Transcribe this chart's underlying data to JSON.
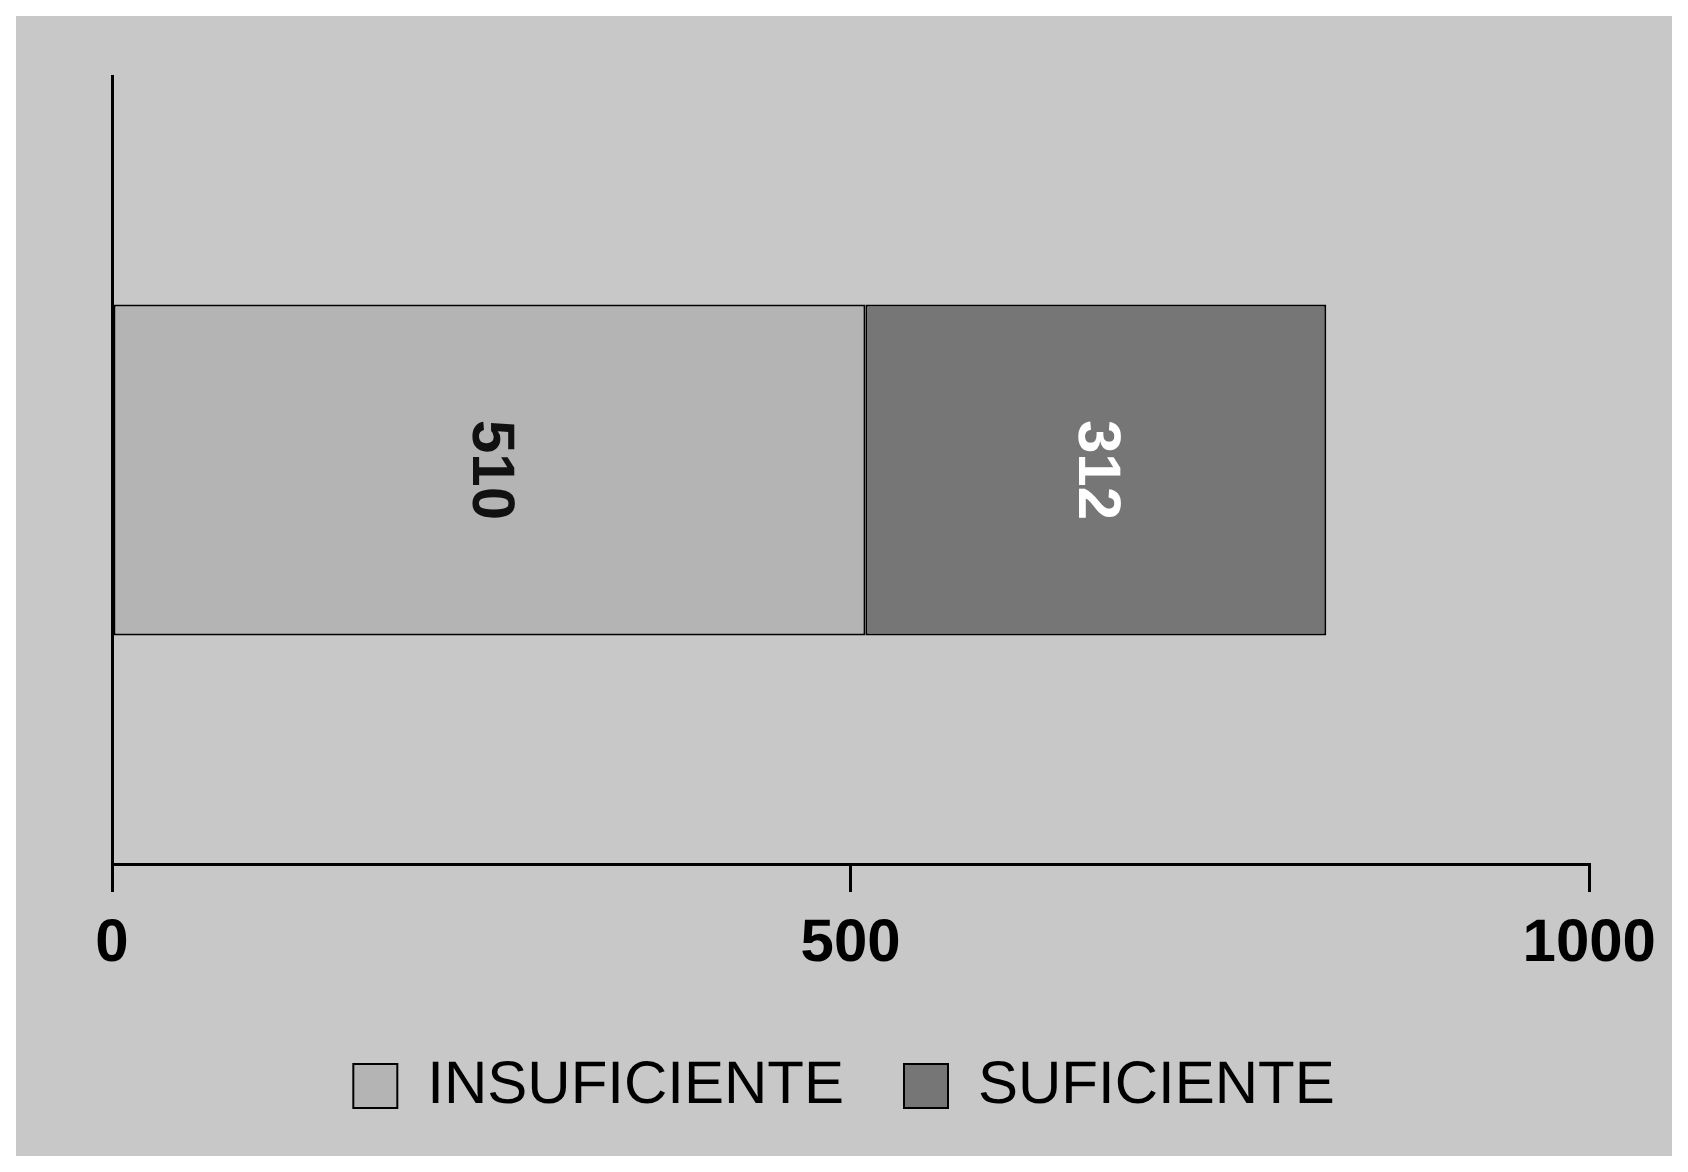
{
  "chart_data": {
    "type": "bar",
    "orientation": "horizontal",
    "stacked": true,
    "categories": [
      null
    ],
    "series": [
      {
        "name": "INSUFICIENTE",
        "color": "#b4b4b4",
        "values": [
          510
        ]
      },
      {
        "name": "SUFICIENTE",
        "color": "#767676",
        "values": [
          312
        ]
      }
    ],
    "xlim": [
      0,
      1000
    ],
    "xticks": [
      0,
      500,
      1000
    ],
    "grid": false,
    "legend": "bottom",
    "data_labels": true
  }
}
